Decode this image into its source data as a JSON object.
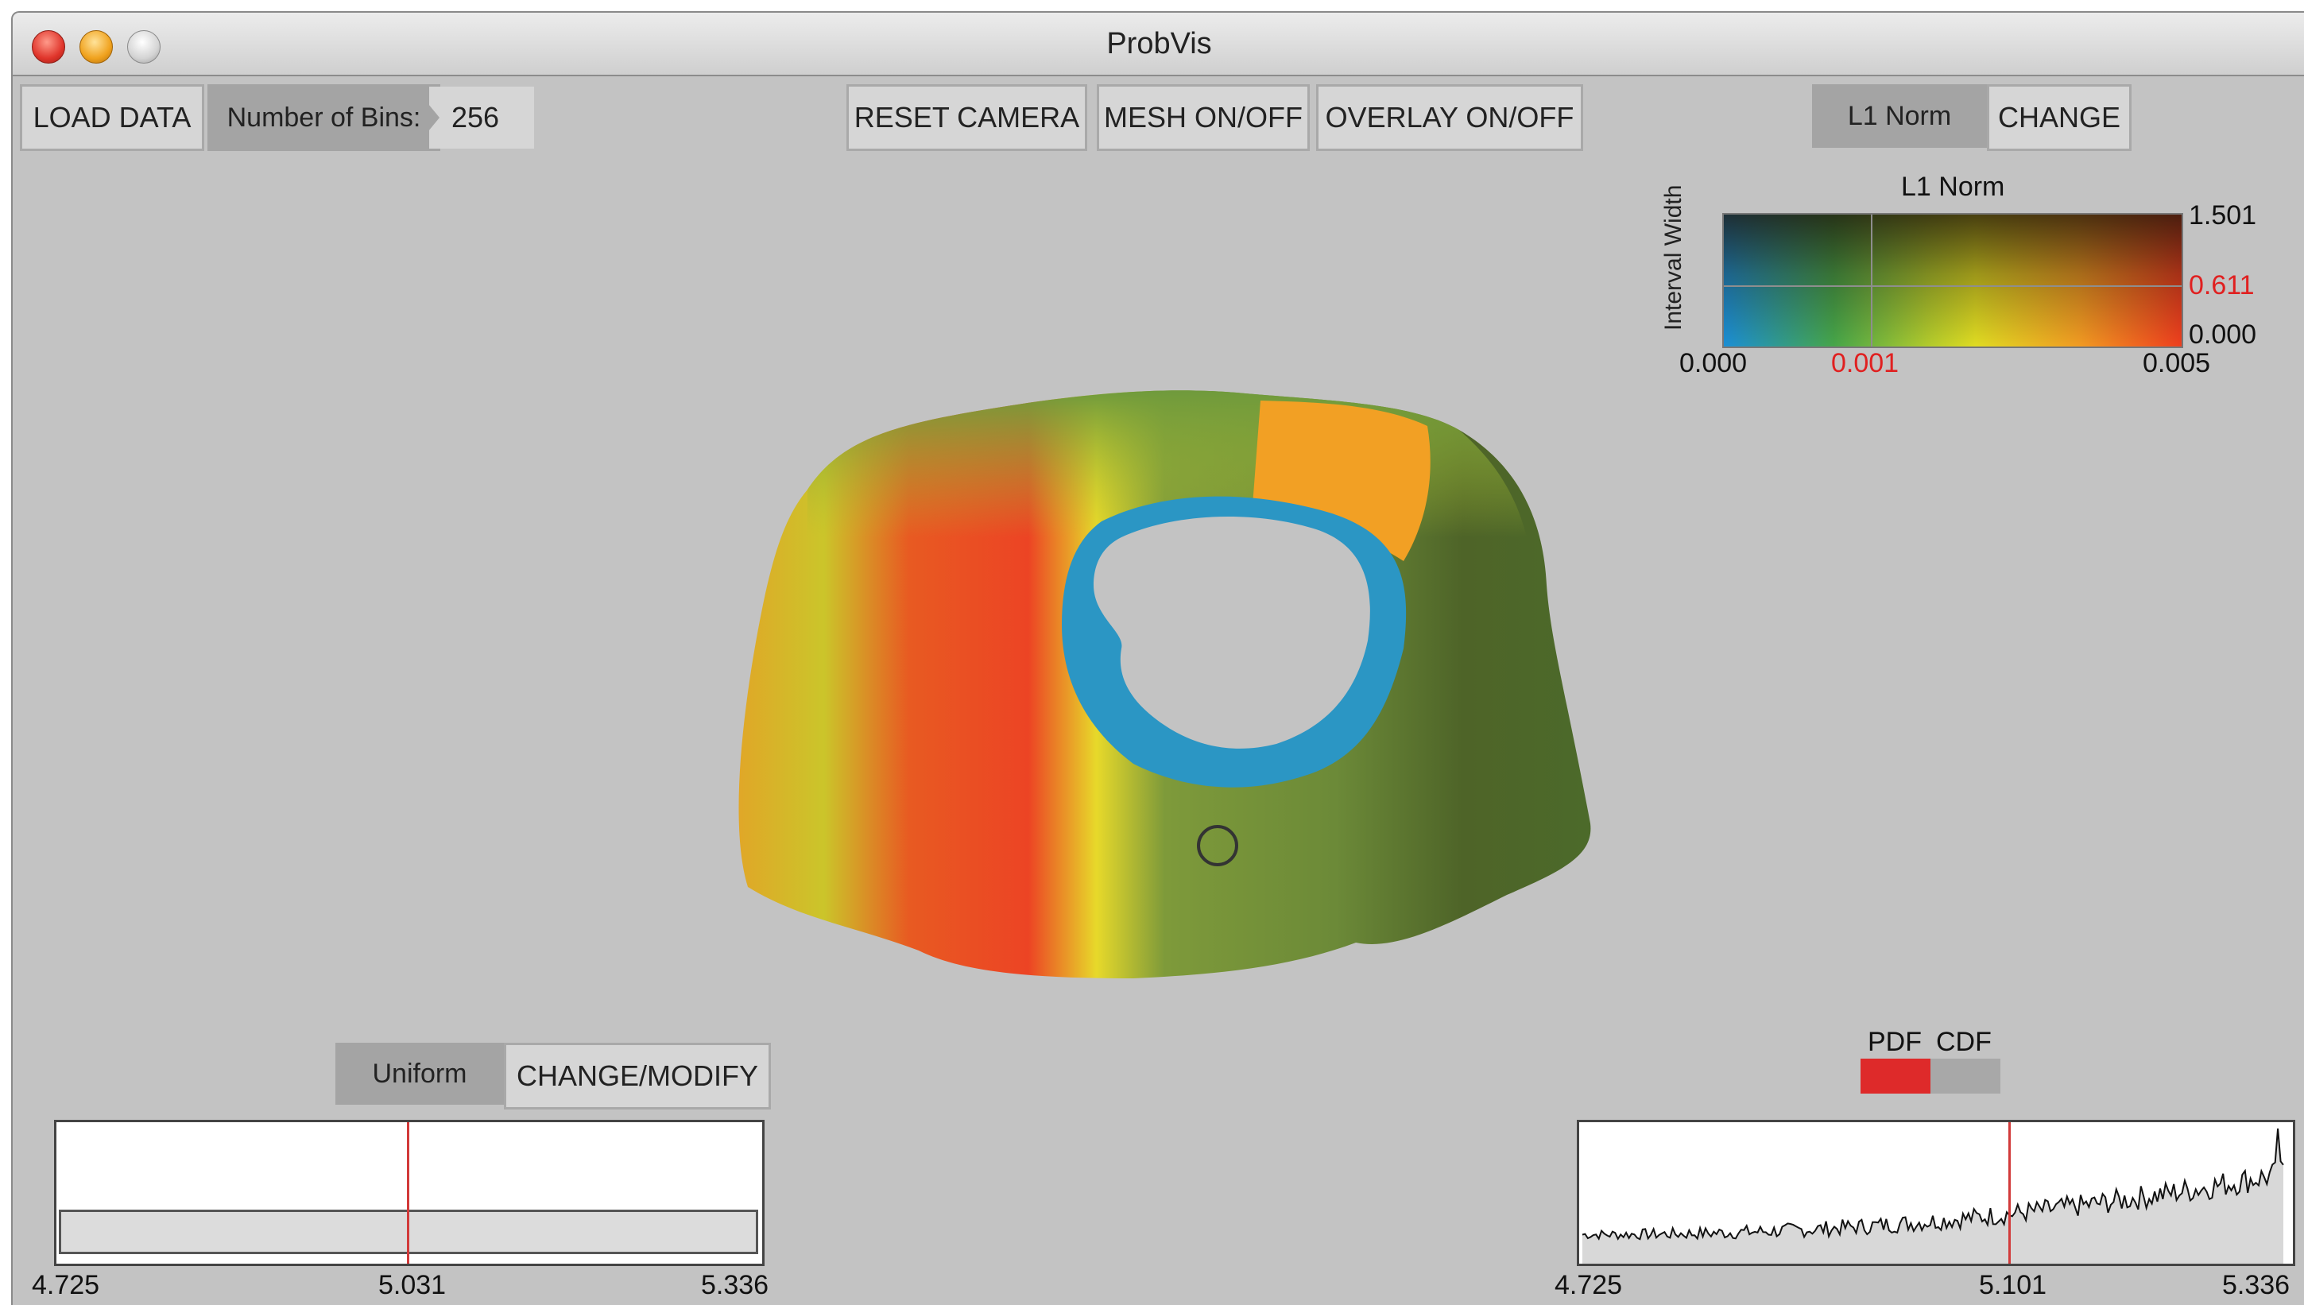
{
  "window": {
    "title": "ProbVis"
  },
  "toolbar": {
    "load_data": "LOAD DATA",
    "bins_label": "Number of Bins:",
    "bins_value": "256",
    "reset_camera": "RESET CAMERA",
    "mesh_toggle": "MESH ON/OFF",
    "overlay_toggle": "OVERLAY ON/OFF",
    "norm_label": "L1 Norm",
    "change": "CHANGE"
  },
  "colormap": {
    "title": "L1 Norm",
    "ylabel": "Interval Width",
    "y_ticks": {
      "max": "1.501",
      "marker": "0.611",
      "min": "0.000"
    },
    "x_ticks": {
      "min": "0.000",
      "marker": "0.001",
      "max": "0.005"
    },
    "highlight_color": "#e02020",
    "colors": [
      "#1b8fd6",
      "#46a64a",
      "#e0dc22",
      "#f29a22",
      "#ef3e1e",
      "#4a1a12"
    ]
  },
  "distribution": {
    "type_label": "Uniform",
    "change_modify": "CHANGE/MODIFY",
    "x_ticks": {
      "min": "4.725",
      "marker": "5.031",
      "max": "5.336"
    },
    "marker_value": 5.031
  },
  "pdf_cdf": {
    "pdf_label": "PDF",
    "cdf_label": "CDF",
    "selected": "PDF",
    "x_ticks": {
      "min": "4.725",
      "marker": "5.101",
      "max": "5.336"
    },
    "marker_value": 5.101
  },
  "surface": {
    "colors": [
      "#6f8f3a",
      "#d6c428",
      "#e8a028",
      "#ec4422",
      "#2c9ac6",
      "#4e6128"
    ]
  }
}
